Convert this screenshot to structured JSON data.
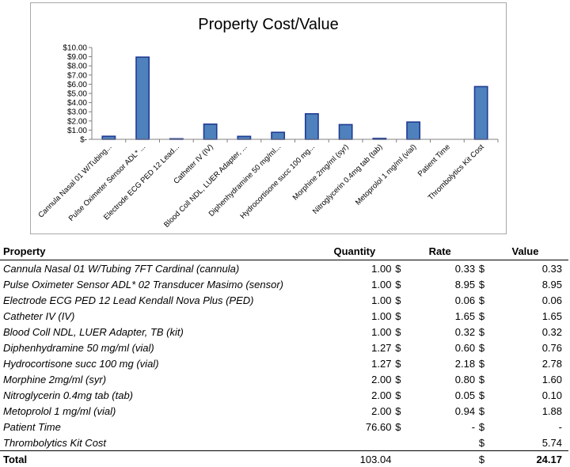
{
  "chart_data": {
    "type": "bar",
    "title": "Property Cost/Value",
    "categories": [
      "Cannula Nasal 01 W/Tubing...",
      "Pulse Oximeter Sensor ADL* ...",
      "Electrode ECG PED 12 Lead...",
      "Catheter IV (IV)",
      "Blood Coll NDL, LUER Adapter, ...",
      "Diphenhydramine 50 mg/ml...",
      "Hydrocortisone succ 100 mg...",
      "Morphine 2mg/ml (syr)",
      "Nitroglycerin 0.4mg tab (tab)",
      "Metoprolol 1 mg/ml (vial)",
      "Patient Time",
      "Thrombolytics Kit Cost"
    ],
    "values": [
      0.33,
      8.95,
      0.06,
      1.65,
      0.32,
      0.76,
      2.78,
      1.6,
      0.1,
      1.88,
      0,
      5.74
    ],
    "ylim": [
      0,
      10
    ],
    "yticks": [
      "$-",
      "$1.00",
      "$2.00",
      "$3.00",
      "$4.00",
      "$5.00",
      "$6.00",
      "$7.00",
      "$8.00",
      "$9.00",
      "$10.00"
    ],
    "bar_color": "#4f81bd",
    "bar_edge_color": "#1f3a93",
    "grid": false,
    "legend": "none"
  },
  "table": {
    "headers": {
      "property": "Property",
      "quantity": "Quantity",
      "rate": "Rate",
      "value": "Value"
    },
    "currency_symbol": "$",
    "rows": [
      {
        "property": "Cannula Nasal 01 W/Tubing 7FT Cardinal (cannula)",
        "quantity": "1.00",
        "rate": "0.33",
        "value": "0.33"
      },
      {
        "property": "Pulse Oximeter Sensor ADL* 02 Transducer Masimo (sensor)",
        "quantity": "1.00",
        "rate": "8.95",
        "value": "8.95"
      },
      {
        "property": "Electrode ECG PED 12 Lead Kendall Nova Plus (PED)",
        "quantity": "1.00",
        "rate": "0.06",
        "value": "0.06"
      },
      {
        "property": "Catheter IV (IV)",
        "quantity": "1.00",
        "rate": "1.65",
        "value": "1.65"
      },
      {
        "property": "Blood Coll NDL, LUER Adapter, TB (kit)",
        "quantity": "1.00",
        "rate": "0.32",
        "value": "0.32"
      },
      {
        "property": "Diphenhydramine 50 mg/ml (vial)",
        "quantity": "1.27",
        "rate": "0.60",
        "value": "0.76"
      },
      {
        "property": "Hydrocortisone succ 100 mg (vial)",
        "quantity": "1.27",
        "rate": "2.18",
        "value": "2.78"
      },
      {
        "property": "Morphine 2mg/ml (syr)",
        "quantity": "2.00",
        "rate": "0.80",
        "value": "1.60"
      },
      {
        "property": "Nitroglycerin 0.4mg tab (tab)",
        "quantity": "2.00",
        "rate": "0.05",
        "value": "0.10"
      },
      {
        "property": "Metoprolol 1 mg/ml (vial)",
        "quantity": "2.00",
        "rate": "0.94",
        "value": "1.88"
      },
      {
        "property": "Patient Time",
        "quantity": "76.60",
        "rate": "-",
        "value": "-"
      },
      {
        "property": "Thrombolytics Kit Cost",
        "quantity": "",
        "rate": "",
        "value": "5.74"
      }
    ],
    "total": {
      "label": "Total",
      "quantity": "103.04",
      "value": "24.17"
    }
  }
}
